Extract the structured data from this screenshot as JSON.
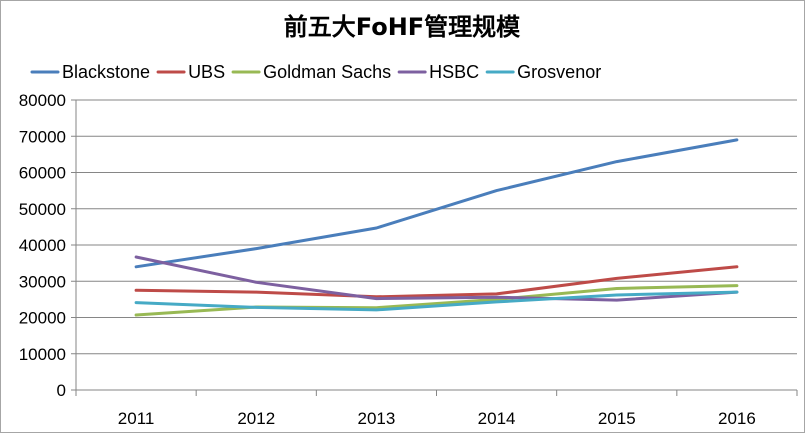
{
  "chart_data": {
    "type": "line",
    "title": "前五大FoHF管理规模",
    "xlabel": "",
    "ylabel": "",
    "categories": [
      "2011",
      "2012",
      "2013",
      "2014",
      "2015",
      "2016"
    ],
    "ylim": [
      0,
      80000
    ],
    "yticks": [
      "0",
      "10000",
      "20000",
      "30000",
      "40000",
      "50000",
      "60000",
      "70000",
      "80000"
    ],
    "grid": "horizontal",
    "legend_position": "top",
    "series": [
      {
        "name": "Blackstone",
        "color": "#4a7ebb",
        "values": [
          34000,
          39000,
          44700,
          55000,
          63000,
          69000
        ]
      },
      {
        "name": "UBS",
        "color": "#be4b48",
        "values": [
          27500,
          27000,
          25700,
          26500,
          30800,
          34000
        ]
      },
      {
        "name": "Goldman Sachs",
        "color": "#98b954",
        "values": [
          20700,
          22900,
          22700,
          25000,
          28000,
          28800
        ]
      },
      {
        "name": "HSBC",
        "color": "#7d60a0",
        "values": [
          36700,
          29700,
          25200,
          25600,
          24800,
          27000
        ]
      },
      {
        "name": "Grosvenor",
        "color": "#46aac5",
        "values": [
          24100,
          22800,
          22100,
          24300,
          26200,
          27000
        ]
      }
    ]
  }
}
